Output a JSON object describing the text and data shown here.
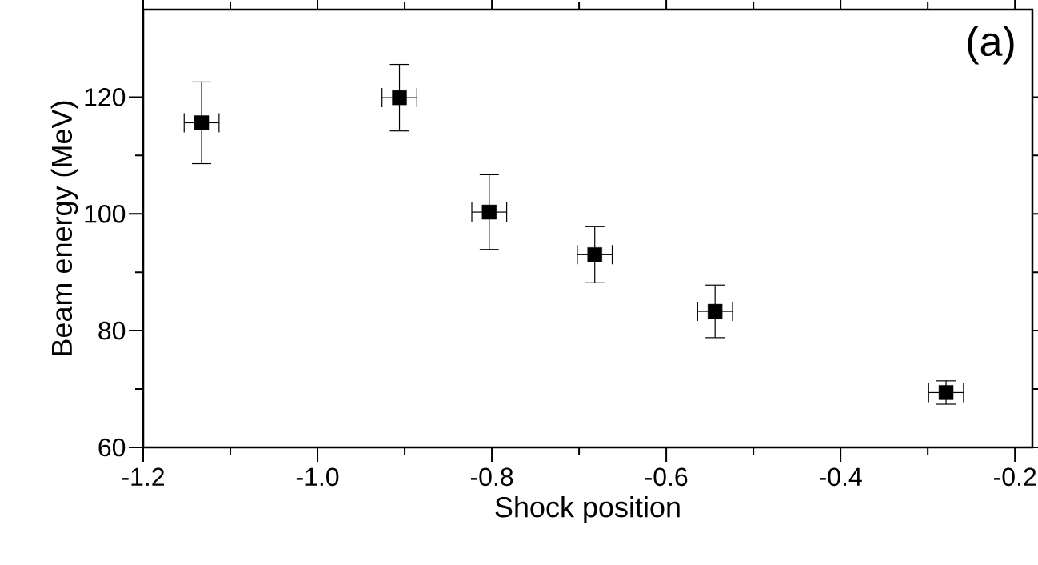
{
  "chart_data": {
    "type": "scatter",
    "xlabel": "Shock position",
    "ylabel": "Beam energy (MeV)",
    "color": "#000000",
    "marker": "square",
    "x": [
      -1.133,
      -0.906,
      -0.803,
      -0.682,
      -0.544,
      -0.279
    ],
    "values": [
      115.6,
      119.9,
      100.3,
      93.0,
      83.3,
      69.4
    ],
    "errors": [
      7,
      5.7,
      6.4,
      4.8,
      4.5,
      2
    ],
    "xerrors": [
      0.02,
      0.02,
      0.02,
      0.02,
      0.02,
      0.02
    ],
    "xlim": [
      -1.2,
      -0.18
    ],
    "ylim": [
      60,
      135
    ],
    "xticks": [
      {
        "value": -1.2,
        "label": "-1.2"
      },
      {
        "value": -1.0,
        "label": "-1.0"
      },
      {
        "value": -0.8,
        "label": "-0.8"
      },
      {
        "value": -0.6,
        "label": "-0.6"
      },
      {
        "value": -0.4,
        "label": "-0.4"
      },
      {
        "value": -0.2,
        "label": "-0.2"
      }
    ],
    "yticks": [
      60,
      80,
      100,
      120
    ],
    "annotations": [
      "(a)"
    ]
  }
}
